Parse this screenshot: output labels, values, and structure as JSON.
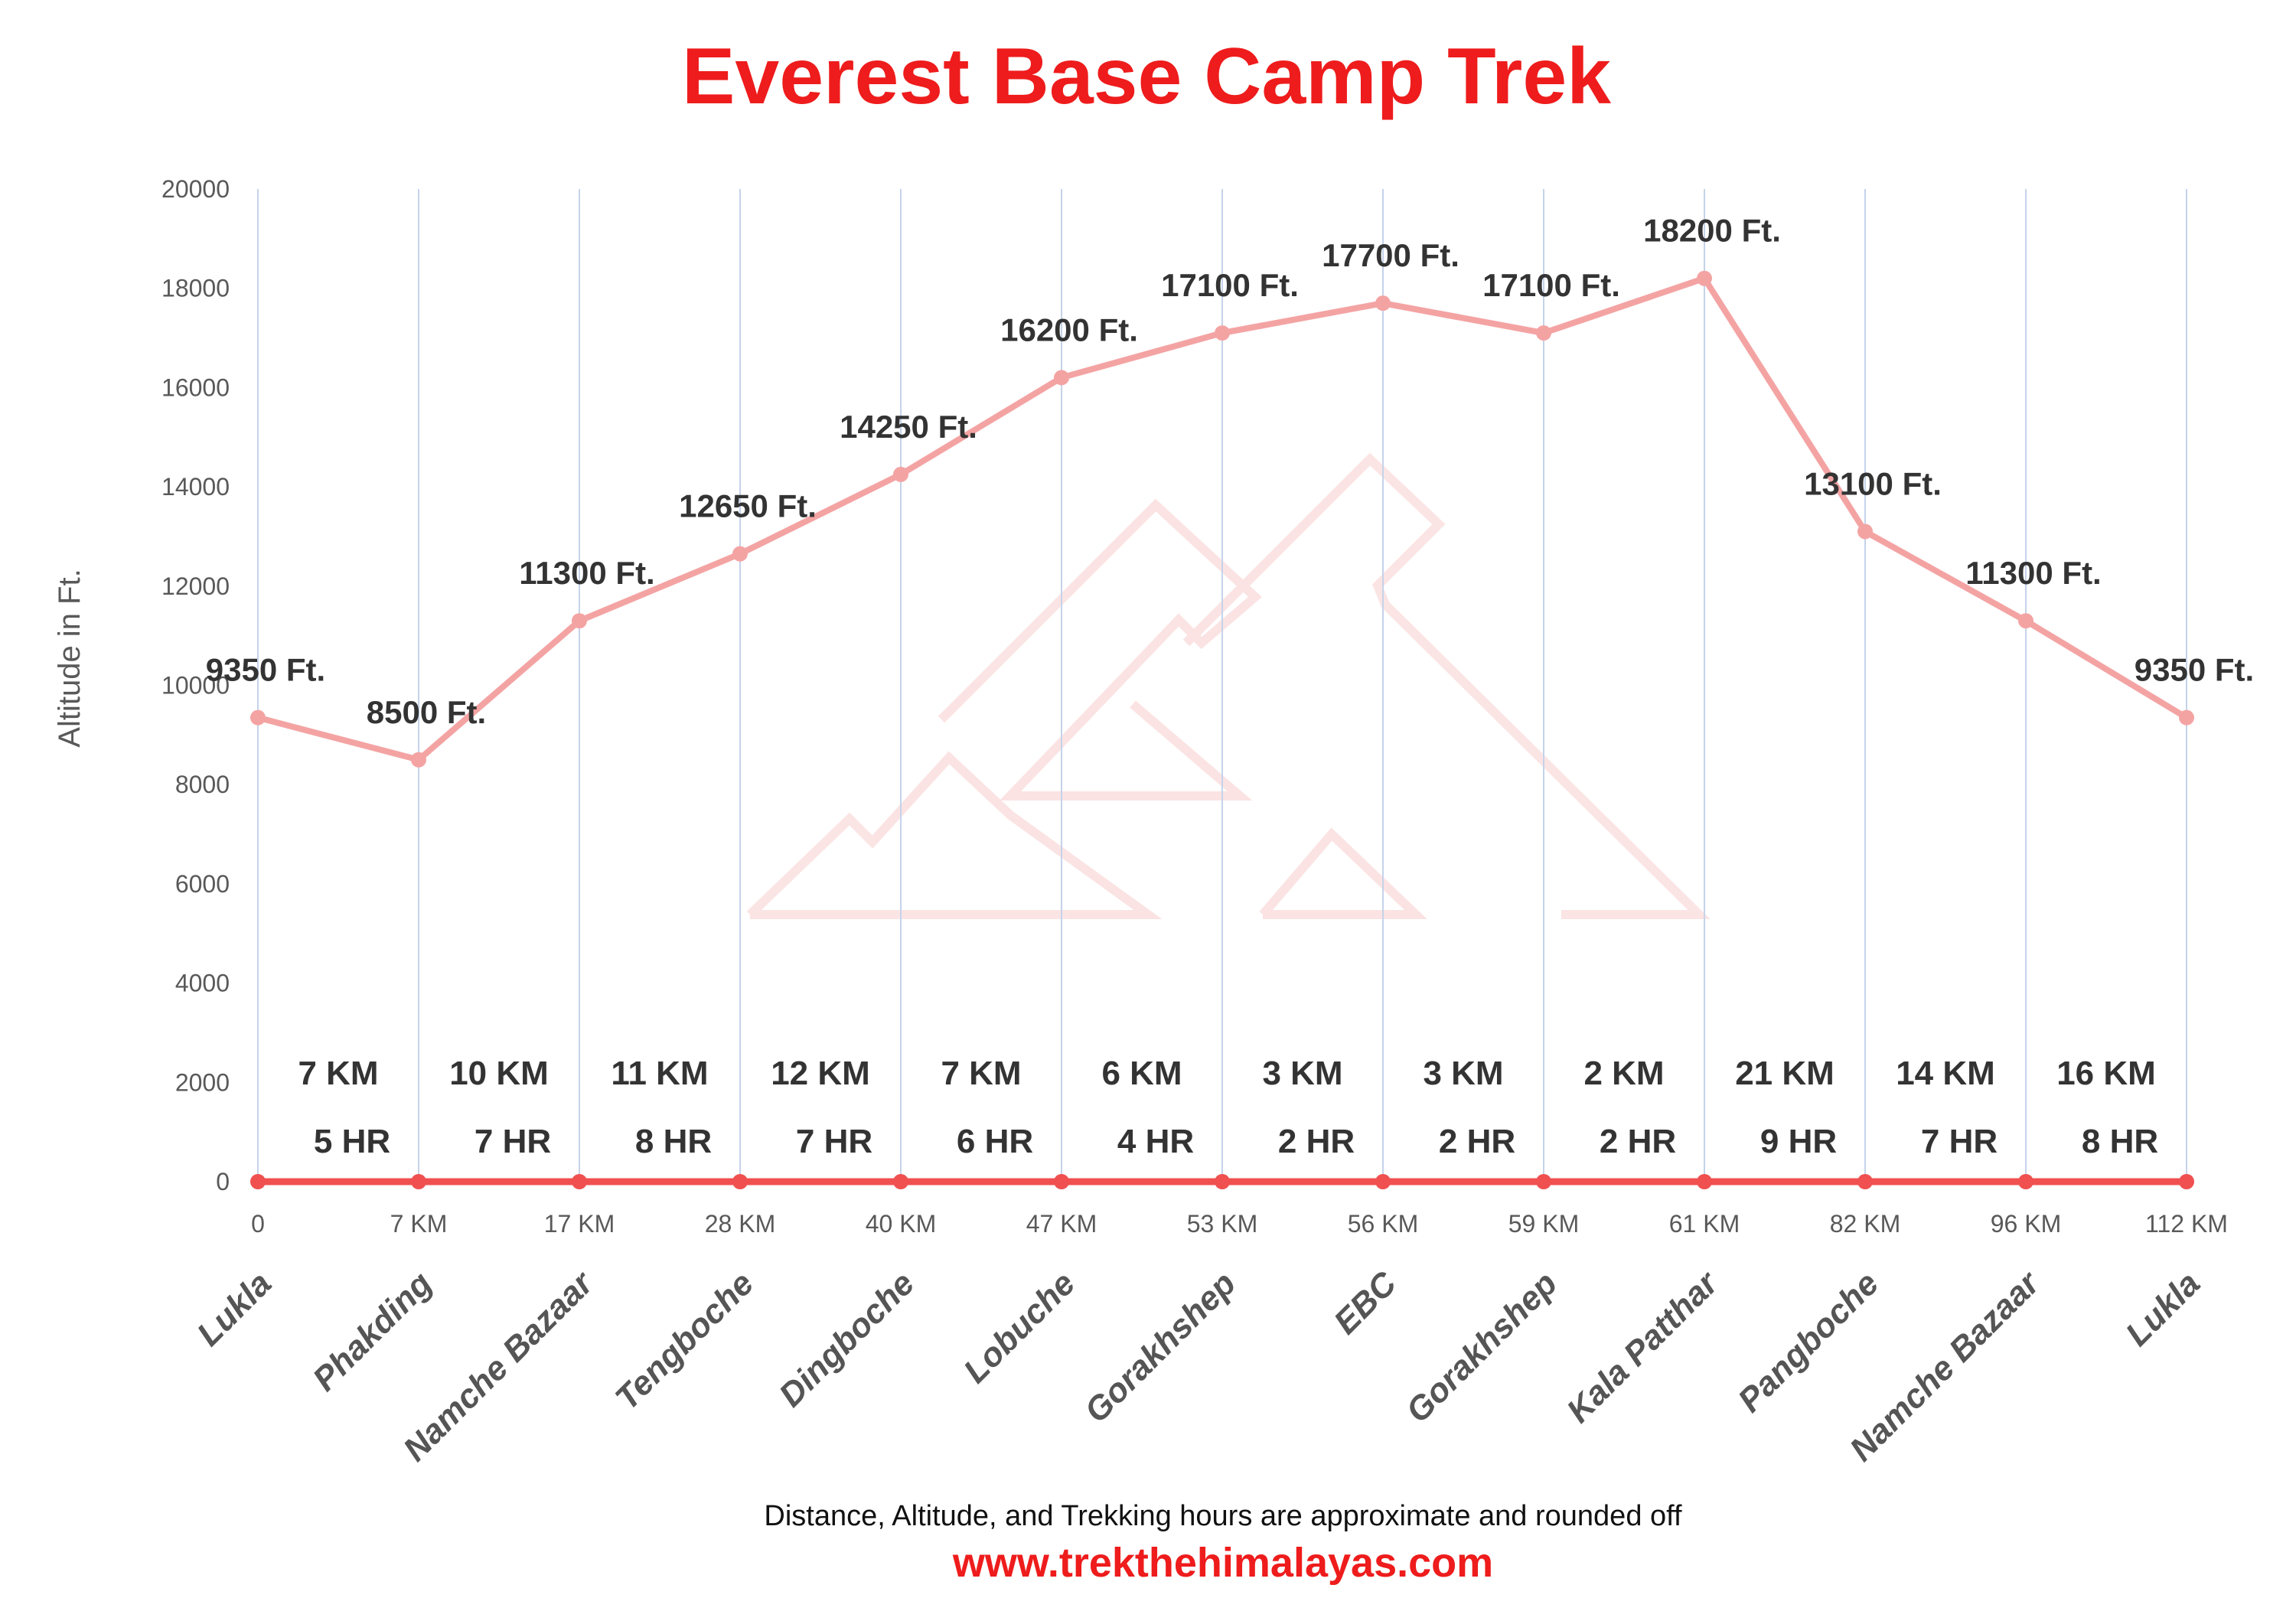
{
  "chart_data": {
    "type": "line",
    "title": "Everest Base Camp Trek",
    "ylabel": "Altitude in Ft.",
    "ylim": [
      0,
      20000
    ],
    "yticks": [
      0,
      2000,
      4000,
      6000,
      8000,
      10000,
      12000,
      14000,
      16000,
      18000,
      20000
    ],
    "grid": "vertical",
    "categories": [
      "Lukla",
      "Phakding",
      "Namche Bazaar",
      "Tengboche",
      "Dingboche",
      "Lobuche",
      "Gorakhshep",
      "EBC",
      "Gorakhshep",
      "Kala Patthar",
      "Pangboche",
      "Namche Bazaar",
      "Lukla"
    ],
    "cumulative_distance_labels": [
      "0",
      "7 KM",
      "17 KM",
      "28 KM",
      "40 KM",
      "47 KM",
      "53 KM",
      "56 KM",
      "59 KM",
      "61 KM",
      "82 KM",
      "96 KM",
      "112 KM"
    ],
    "series": [
      {
        "values": [
          9350,
          8500,
          11300,
          12650,
          14250,
          16200,
          17100,
          17700,
          17100,
          18200,
          13100,
          11300,
          9350
        ],
        "data_labels": [
          "9350 Ft.",
          "8500 Ft.",
          "11300 Ft.",
          "12650 Ft.",
          "14250 Ft.",
          "16200 Ft.",
          "17100 Ft.",
          "17700 Ft.",
          "17100 Ft.",
          "18200 Ft.",
          "13100 Ft.",
          "11300 Ft.",
          "9350 Ft."
        ],
        "color": "#f4a3a3"
      },
      {
        "values": [
          0,
          0,
          0,
          0,
          0,
          0,
          0,
          0,
          0,
          0,
          0,
          0,
          0
        ],
        "color": "#f05050"
      }
    ],
    "segments": [
      {
        "distance": "7 KM",
        "hours": "5 HR"
      },
      {
        "distance": "10 KM",
        "hours": "7 HR"
      },
      {
        "distance": "11 KM",
        "hours": "8 HR"
      },
      {
        "distance": "12 KM",
        "hours": "7 HR"
      },
      {
        "distance": "7 KM",
        "hours": "6 HR"
      },
      {
        "distance": "6 KM",
        "hours": "4 HR"
      },
      {
        "distance": "3 KM",
        "hours": "2 HR"
      },
      {
        "distance": "3 KM",
        "hours": "2 HR"
      },
      {
        "distance": "2 KM",
        "hours": "2 HR"
      },
      {
        "distance": "21 KM",
        "hours": "9 HR"
      },
      {
        "distance": "14 KM",
        "hours": "7 HR"
      },
      {
        "distance": "16 KM",
        "hours": "8 HR"
      }
    ]
  },
  "footnote": "Distance, Altitude,  and Trekking hours are approximate and rounded  off",
  "website": "www.trekthehimalayas.com",
  "watermark": "mountain-logo"
}
